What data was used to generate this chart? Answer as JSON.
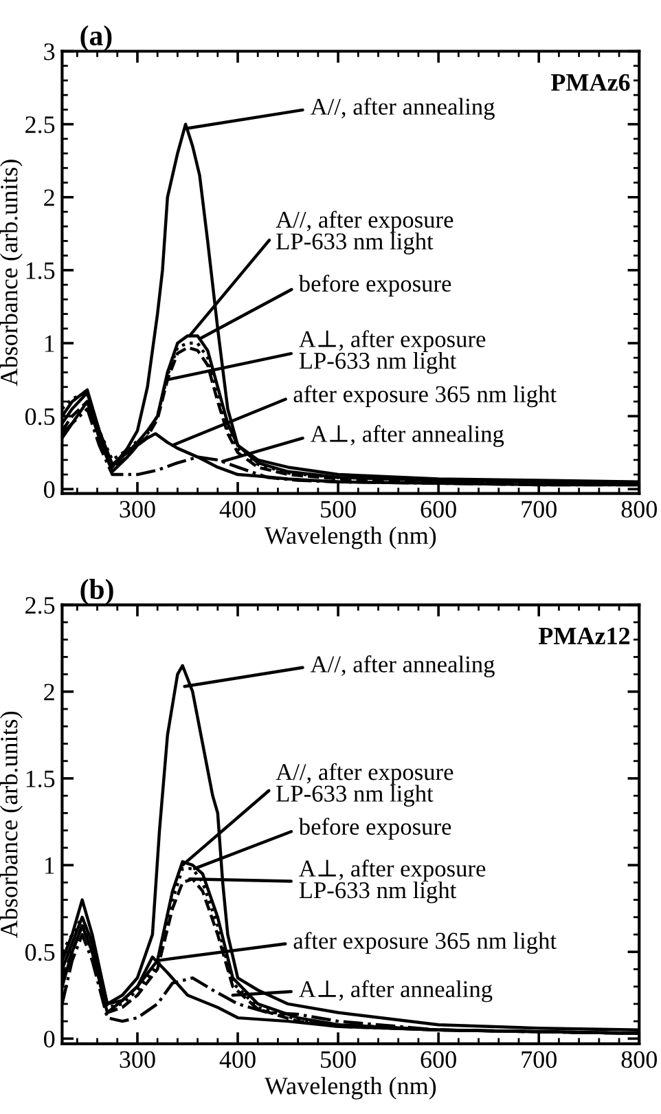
{
  "chart_data": [
    {
      "type": "line",
      "title": "(a)",
      "xlabel": "Wavelength (nm)",
      "ylabel": "Absorbance (arb.units)",
      "xlim": [
        225,
        800
      ],
      "ylim": [
        -0.03,
        3
      ],
      "xticks": [
        300,
        400,
        500,
        600,
        700,
        800
      ],
      "yticks": [
        0,
        0.5,
        1,
        1.5,
        2,
        2.5,
        3
      ],
      "grid": false,
      "marker": "none",
      "annotations": [
        "PMAz6",
        {
          "text": "A//, after annealing",
          "x": 348,
          "y": 2.47
        },
        {
          "text": "A//, after exposure\nLP-633 nm light",
          "x": 352,
          "y": 1.05
        },
        {
          "text": "before exposure",
          "x": 362,
          "y": 1.03
        },
        {
          "text": "A⊥, after exposure\nLP-633 nm light",
          "x": 330,
          "y": 0.75
        },
        {
          "text": "after exposure 365 nm light",
          "x": 335,
          "y": 0.3
        },
        {
          "text": "A⊥, after annealing",
          "x": 385,
          "y": 0.19
        }
      ],
      "series": [
        {
          "color": "#000000",
          "line_style": "solid",
          "x": [
            225,
            235,
            250,
            262,
            275,
            290,
            300,
            310,
            320,
            325,
            330,
            340,
            348,
            355,
            362,
            370,
            380,
            390,
            400,
            420,
            450,
            500,
            600,
            700,
            800
          ],
          "values": [
            0.45,
            0.55,
            0.66,
            0.4,
            0.15,
            0.28,
            0.4,
            0.7,
            1.2,
            1.5,
            2.0,
            2.3,
            2.5,
            2.35,
            2.15,
            1.7,
            1.1,
            0.55,
            0.3,
            0.2,
            0.15,
            0.1,
            0.07,
            0.06,
            0.05
          ]
        },
        {
          "color": "#000000",
          "line_style": "solid",
          "x": [
            225,
            235,
            250,
            262,
            275,
            290,
            300,
            310,
            320,
            330,
            340,
            350,
            360,
            370,
            380,
            390,
            400,
            420,
            450,
            500,
            600,
            700,
            800
          ],
          "values": [
            0.5,
            0.6,
            0.68,
            0.4,
            0.17,
            0.25,
            0.32,
            0.4,
            0.5,
            0.8,
            1.0,
            1.05,
            1.05,
            0.95,
            0.7,
            0.45,
            0.3,
            0.18,
            0.12,
            0.08,
            0.06,
            0.05,
            0.04
          ]
        },
        {
          "color": "#000000",
          "line_style": "dotted",
          "x": [
            225,
            235,
            250,
            262,
            275,
            290,
            300,
            310,
            320,
            330,
            340,
            350,
            360,
            370,
            380,
            390,
            400,
            420,
            450,
            500,
            600,
            700,
            800
          ],
          "values": [
            0.55,
            0.62,
            0.66,
            0.4,
            0.2,
            0.27,
            0.33,
            0.38,
            0.5,
            0.78,
            0.97,
            1.0,
            1.0,
            0.9,
            0.65,
            0.4,
            0.28,
            0.17,
            0.11,
            0.08,
            0.06,
            0.05,
            0.04
          ]
        },
        {
          "color": "#000000",
          "line_style": "dashed",
          "x": [
            225,
            235,
            250,
            262,
            275,
            290,
            300,
            310,
            320,
            330,
            340,
            350,
            360,
            370,
            380,
            390,
            400,
            420,
            450,
            500,
            600,
            700,
            800
          ],
          "values": [
            0.4,
            0.5,
            0.6,
            0.38,
            0.15,
            0.22,
            0.3,
            0.36,
            0.48,
            0.75,
            0.93,
            0.97,
            0.95,
            0.85,
            0.6,
            0.38,
            0.25,
            0.15,
            0.1,
            0.07,
            0.05,
            0.04,
            0.03
          ]
        },
        {
          "color": "#000000",
          "line_style": "solid",
          "x": [
            225,
            235,
            250,
            262,
            275,
            290,
            300,
            310,
            318,
            330,
            340,
            360,
            380,
            400,
            420,
            450,
            500,
            600,
            700,
            800
          ],
          "values": [
            0.35,
            0.45,
            0.6,
            0.35,
            0.12,
            0.22,
            0.3,
            0.35,
            0.38,
            0.32,
            0.28,
            0.22,
            0.15,
            0.1,
            0.09,
            0.07,
            0.05,
            0.04,
            0.03,
            0.03
          ]
        },
        {
          "color": "#000000",
          "line_style": "dashdot",
          "x": [
            225,
            235,
            250,
            262,
            275,
            290,
            300,
            320,
            340,
            360,
            380,
            400,
            430,
            460,
            500,
            600,
            700,
            800
          ],
          "values": [
            0.38,
            0.45,
            0.55,
            0.3,
            0.1,
            0.1,
            0.1,
            0.13,
            0.18,
            0.22,
            0.2,
            0.15,
            0.08,
            0.06,
            0.05,
            0.04,
            0.03,
            0.03
          ]
        }
      ]
    },
    {
      "type": "line",
      "title": "(b)",
      "xlabel": "Wavelength (nm)",
      "ylabel": "Absorbance (arb.units)",
      "xlim": [
        225,
        800
      ],
      "ylim": [
        -0.03,
        2.5
      ],
      "xticks": [
        300,
        400,
        500,
        600,
        700,
        800
      ],
      "yticks": [
        0,
        0.5,
        1,
        1.5,
        2,
        2.5
      ],
      "grid": false,
      "marker": "none",
      "annotations": [
        "PMAz12",
        {
          "text": "A//, after annealing",
          "x": 347,
          "y": 2.03
        },
        {
          "text": "A//, after exposure\nLP-633 nm light",
          "x": 345,
          "y": 1.0
        },
        {
          "text": "before exposure",
          "x": 357,
          "y": 0.98
        },
        {
          "text": "A⊥, after exposure\nLP-633 nm light",
          "x": 352,
          "y": 0.92
        },
        {
          "text": "after exposure 365 nm light",
          "x": 320,
          "y": 0.45
        },
        {
          "text": "A⊥, after annealing",
          "x": 395,
          "y": 0.25
        }
      ],
      "series": [
        {
          "color": "#000000",
          "line_style": "solid",
          "x": [
            225,
            235,
            245,
            255,
            270,
            285,
            300,
            315,
            322,
            330,
            340,
            345,
            355,
            365,
            375,
            380,
            385,
            390,
            400,
            420,
            450,
            500,
            600,
            700,
            800
          ],
          "values": [
            0.4,
            0.55,
            0.7,
            0.55,
            0.2,
            0.25,
            0.35,
            0.6,
            1.2,
            1.75,
            2.1,
            2.15,
            2.0,
            1.7,
            1.4,
            1.3,
            0.9,
            0.6,
            0.35,
            0.28,
            0.2,
            0.15,
            0.08,
            0.06,
            0.05
          ]
        },
        {
          "color": "#000000",
          "line_style": "solid",
          "x": [
            225,
            235,
            245,
            255,
            270,
            285,
            300,
            320,
            335,
            345,
            355,
            365,
            380,
            395,
            420,
            460,
            500,
            600,
            700,
            800
          ],
          "values": [
            0.45,
            0.6,
            0.8,
            0.6,
            0.2,
            0.22,
            0.3,
            0.45,
            0.85,
            1.02,
            1.0,
            0.95,
            0.7,
            0.35,
            0.2,
            0.12,
            0.08,
            0.05,
            0.04,
            0.03
          ]
        },
        {
          "color": "#000000",
          "line_style": "dotted",
          "x": [
            225,
            235,
            245,
            255,
            270,
            285,
            300,
            320,
            335,
            345,
            355,
            365,
            380,
            395,
            420,
            460,
            500,
            600,
            700,
            800
          ],
          "values": [
            0.5,
            0.6,
            0.7,
            0.55,
            0.18,
            0.2,
            0.28,
            0.42,
            0.8,
            0.98,
            0.98,
            0.9,
            0.65,
            0.32,
            0.18,
            0.11,
            0.08,
            0.05,
            0.04,
            0.03
          ]
        },
        {
          "color": "#000000",
          "line_style": "dashed",
          "x": [
            225,
            235,
            245,
            255,
            270,
            285,
            300,
            320,
            335,
            345,
            355,
            365,
            380,
            395,
            420,
            460,
            500,
            600,
            700,
            800
          ],
          "values": [
            0.35,
            0.5,
            0.65,
            0.5,
            0.15,
            0.18,
            0.25,
            0.4,
            0.75,
            0.9,
            0.92,
            0.85,
            0.6,
            0.3,
            0.17,
            0.1,
            0.07,
            0.05,
            0.04,
            0.03
          ]
        },
        {
          "color": "#000000",
          "line_style": "solid",
          "x": [
            225,
            235,
            245,
            255,
            270,
            285,
            300,
            315,
            330,
            350,
            380,
            400,
            450,
            500,
            600,
            700,
            800
          ],
          "values": [
            0.3,
            0.5,
            0.65,
            0.5,
            0.15,
            0.22,
            0.3,
            0.47,
            0.38,
            0.25,
            0.18,
            0.12,
            0.1,
            0.07,
            0.05,
            0.04,
            0.03
          ]
        },
        {
          "color": "#000000",
          "line_style": "dashdot",
          "x": [
            225,
            235,
            245,
            255,
            270,
            285,
            300,
            320,
            335,
            355,
            375,
            400,
            430,
            460,
            500,
            600,
            700,
            800
          ],
          "values": [
            0.2,
            0.45,
            0.6,
            0.45,
            0.12,
            0.1,
            0.12,
            0.2,
            0.32,
            0.35,
            0.28,
            0.2,
            0.15,
            0.14,
            0.1,
            0.05,
            0.04,
            0.03
          ]
        }
      ]
    }
  ]
}
